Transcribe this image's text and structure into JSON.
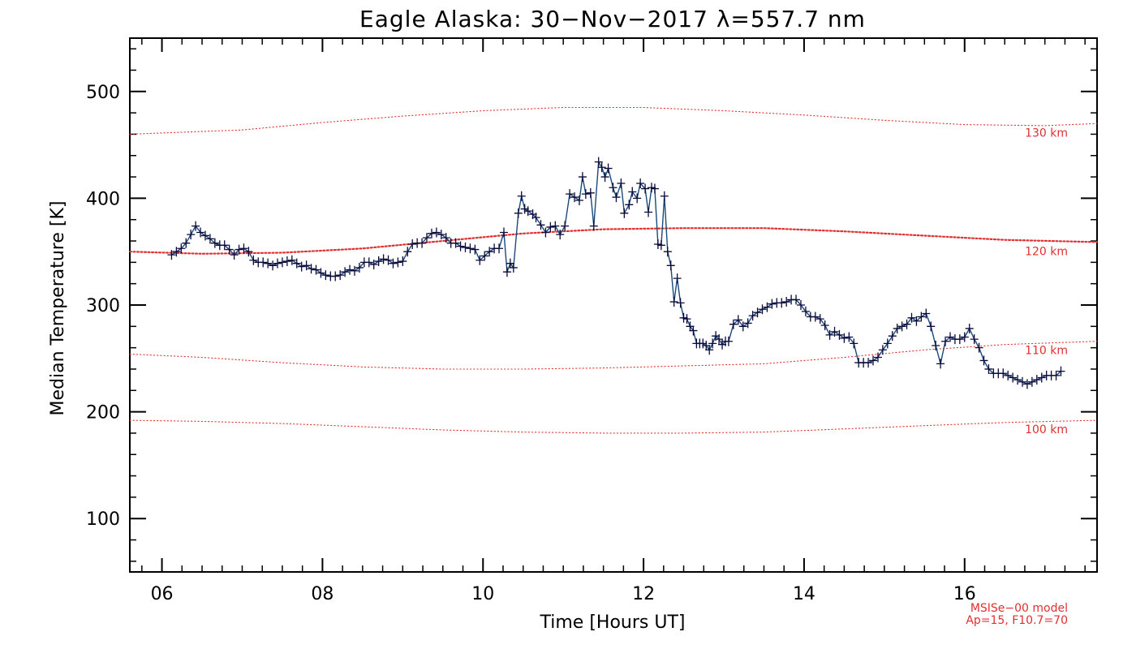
{
  "chart_data": {
    "type": "line",
    "title": "Eagle Alaska: 30−Nov−2017 λ=557.7 nm",
    "xlabel": "Time [Hours UT]",
    "ylabel": "Median Temperature [K]",
    "xlim": [
      5.6,
      17.65
    ],
    "ylim": [
      50,
      550
    ],
    "x_ticks": [
      6,
      8,
      10,
      12,
      14,
      16
    ],
    "x_tick_labels": [
      "06",
      "08",
      "10",
      "12",
      "14",
      "16"
    ],
    "y_ticks": [
      100,
      200,
      300,
      400,
      500
    ],
    "y_tick_labels": [
      "100",
      "200",
      "300",
      "400",
      "500"
    ],
    "model_note": [
      "MSISe−00 model",
      "Ap=15, F10.7=70"
    ],
    "series": [
      {
        "color": "#1a4a7a",
        "marker": "plus",
        "points": [
          [
            6.12,
            347
          ],
          [
            6.18,
            350
          ],
          [
            6.24,
            353
          ],
          [
            6.3,
            358
          ],
          [
            6.36,
            366
          ],
          [
            6.42,
            374
          ],
          [
            6.48,
            368
          ],
          [
            6.54,
            365
          ],
          [
            6.6,
            362
          ],
          [
            6.66,
            358
          ],
          [
            6.72,
            356
          ],
          [
            6.78,
            356
          ],
          [
            6.84,
            352
          ],
          [
            6.9,
            347
          ],
          [
            6.96,
            352
          ],
          [
            7.02,
            353
          ],
          [
            7.08,
            350
          ],
          [
            7.14,
            342
          ],
          [
            7.2,
            340
          ],
          [
            7.26,
            340
          ],
          [
            7.32,
            339
          ],
          [
            7.38,
            337
          ],
          [
            7.44,
            339
          ],
          [
            7.5,
            340
          ],
          [
            7.56,
            341
          ],
          [
            7.62,
            342
          ],
          [
            7.68,
            339
          ],
          [
            7.74,
            336
          ],
          [
            7.8,
            337
          ],
          [
            7.86,
            334
          ],
          [
            7.92,
            333
          ],
          [
            7.98,
            330
          ],
          [
            8.04,
            328
          ],
          [
            8.1,
            327
          ],
          [
            8.16,
            327
          ],
          [
            8.22,
            328
          ],
          [
            8.28,
            331
          ],
          [
            8.34,
            333
          ],
          [
            8.4,
            332
          ],
          [
            8.46,
            335
          ],
          [
            8.52,
            340
          ],
          [
            8.58,
            340
          ],
          [
            8.64,
            338
          ],
          [
            8.7,
            341
          ],
          [
            8.76,
            343
          ],
          [
            8.82,
            342
          ],
          [
            8.88,
            339
          ],
          [
            8.94,
            340
          ],
          [
            9.0,
            341
          ],
          [
            9.06,
            350
          ],
          [
            9.12,
            357
          ],
          [
            9.18,
            358
          ],
          [
            9.24,
            358
          ],
          [
            9.3,
            363
          ],
          [
            9.36,
            367
          ],
          [
            9.42,
            368
          ],
          [
            9.48,
            366
          ],
          [
            9.54,
            363
          ],
          [
            9.6,
            358
          ],
          [
            9.66,
            358
          ],
          [
            9.72,
            355
          ],
          [
            9.78,
            354
          ],
          [
            9.84,
            353
          ],
          [
            9.9,
            352
          ],
          [
            9.96,
            342
          ],
          [
            10.02,
            346
          ],
          [
            10.08,
            350
          ],
          [
            10.14,
            353
          ],
          [
            10.2,
            353
          ],
          [
            10.26,
            368
          ],
          [
            10.3,
            331
          ],
          [
            10.34,
            339
          ],
          [
            10.38,
            335
          ],
          [
            10.44,
            386
          ],
          [
            10.48,
            402
          ],
          [
            10.52,
            390
          ],
          [
            10.56,
            388
          ],
          [
            10.62,
            385
          ],
          [
            10.66,
            382
          ],
          [
            10.72,
            375
          ],
          [
            10.78,
            368
          ],
          [
            10.84,
            373
          ],
          [
            10.9,
            374
          ],
          [
            10.96,
            366
          ],
          [
            11.02,
            374
          ],
          [
            11.08,
            404
          ],
          [
            11.14,
            401
          ],
          [
            11.2,
            398
          ],
          [
            11.24,
            420
          ],
          [
            11.28,
            404
          ],
          [
            11.34,
            405
          ],
          [
            11.38,
            374
          ],
          [
            11.44,
            434
          ],
          [
            11.48,
            429
          ],
          [
            11.52,
            420
          ],
          [
            11.56,
            428
          ],
          [
            11.62,
            410
          ],
          [
            11.66,
            401
          ],
          [
            11.72,
            414
          ],
          [
            11.76,
            386
          ],
          [
            11.82,
            394
          ],
          [
            11.86,
            406
          ],
          [
            11.92,
            400
          ],
          [
            11.96,
            414
          ],
          [
            12.02,
            409
          ],
          [
            12.06,
            387
          ],
          [
            12.1,
            410
          ],
          [
            12.14,
            409
          ],
          [
            12.18,
            357
          ],
          [
            12.22,
            356
          ],
          [
            12.26,
            402
          ],
          [
            12.3,
            350
          ],
          [
            12.34,
            337
          ],
          [
            12.38,
            303
          ],
          [
            12.42,
            325
          ],
          [
            12.46,
            302
          ],
          [
            12.5,
            288
          ],
          [
            12.54,
            287
          ],
          [
            12.58,
            280
          ],
          [
            12.62,
            276
          ],
          [
            12.66,
            264
          ],
          [
            12.7,
            264
          ],
          [
            12.74,
            264
          ],
          [
            12.78,
            262
          ],
          [
            12.82,
            258
          ],
          [
            12.86,
            264
          ],
          [
            12.9,
            271
          ],
          [
            12.94,
            268
          ],
          [
            12.98,
            263
          ],
          [
            13.02,
            266
          ],
          [
            13.06,
            266
          ],
          [
            13.12,
            282
          ],
          [
            13.18,
            286
          ],
          [
            13.24,
            280
          ],
          [
            13.3,
            283
          ],
          [
            13.36,
            290
          ],
          [
            13.42,
            293
          ],
          [
            13.48,
            296
          ],
          [
            13.54,
            298
          ],
          [
            13.6,
            301
          ],
          [
            13.66,
            302
          ],
          [
            13.72,
            302
          ],
          [
            13.78,
            303
          ],
          [
            13.84,
            305
          ],
          [
            13.9,
            305
          ],
          [
            13.96,
            300
          ],
          [
            14.02,
            294
          ],
          [
            14.08,
            289
          ],
          [
            14.14,
            289
          ],
          [
            14.2,
            287
          ],
          [
            14.26,
            281
          ],
          [
            14.32,
            272
          ],
          [
            14.38,
            275
          ],
          [
            14.44,
            272
          ],
          [
            14.5,
            269
          ],
          [
            14.56,
            270
          ],
          [
            14.62,
            264
          ],
          [
            14.68,
            246
          ],
          [
            14.74,
            246
          ],
          [
            14.8,
            246
          ],
          [
            14.86,
            248
          ],
          [
            14.92,
            251
          ],
          [
            14.98,
            258
          ],
          [
            15.04,
            264
          ],
          [
            15.1,
            271
          ],
          [
            15.16,
            278
          ],
          [
            15.22,
            280
          ],
          [
            15.28,
            282
          ],
          [
            15.34,
            288
          ],
          [
            15.4,
            285
          ],
          [
            15.46,
            289
          ],
          [
            15.52,
            292
          ],
          [
            15.58,
            280
          ],
          [
            15.64,
            262
          ],
          [
            15.7,
            245
          ],
          [
            15.76,
            266
          ],
          [
            15.82,
            270
          ],
          [
            15.88,
            268
          ],
          [
            15.94,
            268
          ],
          [
            16.0,
            270
          ],
          [
            16.06,
            278
          ],
          [
            16.12,
            268
          ],
          [
            16.18,
            260
          ],
          [
            16.24,
            248
          ],
          [
            16.3,
            240
          ],
          [
            16.36,
            236
          ],
          [
            16.42,
            236
          ],
          [
            16.48,
            236
          ],
          [
            16.54,
            234
          ],
          [
            16.6,
            232
          ],
          [
            16.66,
            230
          ],
          [
            16.72,
            228
          ],
          [
            16.78,
            226
          ],
          [
            16.84,
            228
          ],
          [
            16.9,
            230
          ],
          [
            16.96,
            232
          ],
          [
            17.02,
            234
          ],
          [
            17.08,
            234
          ],
          [
            17.14,
            234
          ],
          [
            17.2,
            238
          ]
        ]
      }
    ],
    "model_curves": [
      {
        "label": "130 km",
        "style": "dotted",
        "color": "#e03030",
        "points": [
          [
            5.6,
            460
          ],
          [
            7,
            464
          ],
          [
            8,
            471
          ],
          [
            9,
            477
          ],
          [
            10,
            482
          ],
          [
            11,
            485
          ],
          [
            12,
            485
          ],
          [
            13,
            482
          ],
          [
            14,
            478
          ],
          [
            15,
            473
          ],
          [
            16,
            469
          ],
          [
            17,
            468
          ],
          [
            17.65,
            470
          ]
        ]
      },
      {
        "label": "120 km",
        "style": "dotted-bold",
        "color": "#e03030",
        "points": [
          [
            5.6,
            350
          ],
          [
            6.5,
            348
          ],
          [
            7.5,
            349
          ],
          [
            8.5,
            353
          ],
          [
            9.5,
            360
          ],
          [
            10.5,
            367
          ],
          [
            11.5,
            371
          ],
          [
            12.5,
            372
          ],
          [
            13.5,
            372
          ],
          [
            14.5,
            369
          ],
          [
            15.5,
            365
          ],
          [
            16.5,
            361
          ],
          [
            17.65,
            359
          ]
        ]
      },
      {
        "label": "110 km",
        "style": "dotted",
        "color": "#e03030",
        "points": [
          [
            5.6,
            254
          ],
          [
            6.5,
            251
          ],
          [
            7.5,
            246
          ],
          [
            8.5,
            242
          ],
          [
            9.5,
            240
          ],
          [
            10.5,
            240
          ],
          [
            11.5,
            241
          ],
          [
            12.5,
            243
          ],
          [
            13.5,
            245
          ],
          [
            14.5,
            251
          ],
          [
            15.5,
            258
          ],
          [
            16.5,
            263
          ],
          [
            17.65,
            266
          ]
        ]
      },
      {
        "label": "100 km",
        "style": "dotted",
        "color": "#e03030",
        "points": [
          [
            5.6,
            192
          ],
          [
            6.5,
            191
          ],
          [
            7.5,
            189
          ],
          [
            8.5,
            186
          ],
          [
            9.5,
            183
          ],
          [
            10.5,
            181
          ],
          [
            11.5,
            180
          ],
          [
            12.5,
            180
          ],
          [
            13.5,
            181
          ],
          [
            14.5,
            184
          ],
          [
            15.5,
            187
          ],
          [
            16.5,
            190
          ],
          [
            17.65,
            192
          ]
        ]
      }
    ]
  }
}
